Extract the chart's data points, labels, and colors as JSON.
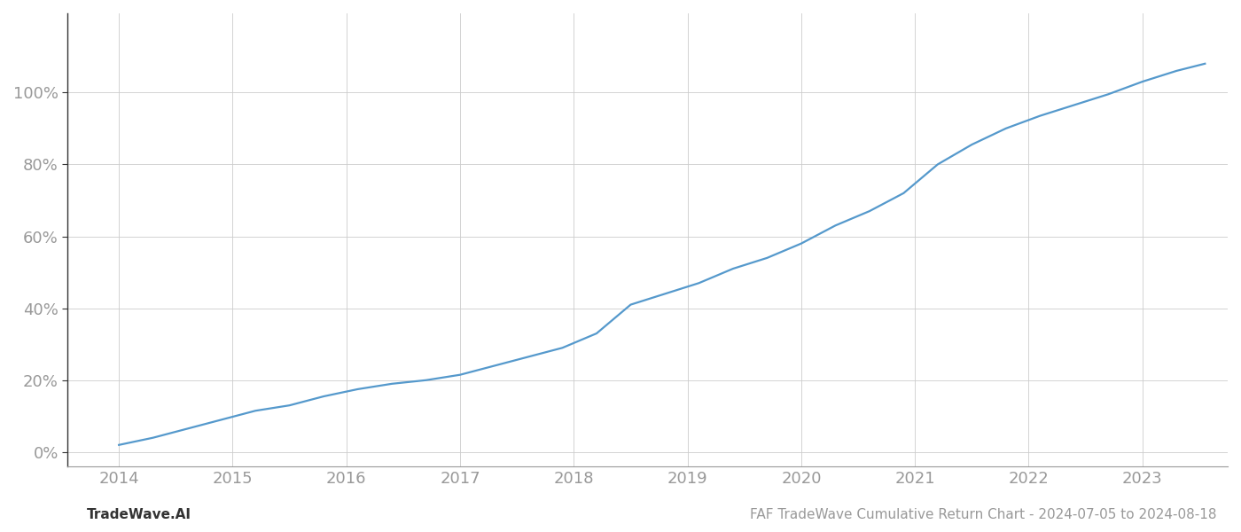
{
  "title": "FAF TradeWave Cumulative Return Chart - 2024-07-05 to 2024-08-18",
  "watermark_left": "TradeWave.AI",
  "line_color": "#5599cc",
  "background_color": "#ffffff",
  "grid_color": "#cccccc",
  "x_years": [
    2014,
    2015,
    2016,
    2017,
    2018,
    2019,
    2020,
    2021,
    2022,
    2023
  ],
  "x_data": [
    2014.0,
    2014.3,
    2014.6,
    2014.9,
    2015.2,
    2015.5,
    2015.8,
    2016.1,
    2016.4,
    2016.7,
    2017.0,
    2017.3,
    2017.6,
    2017.9,
    2018.2,
    2018.5,
    2018.8,
    2019.1,
    2019.4,
    2019.7,
    2020.0,
    2020.3,
    2020.6,
    2020.9,
    2021.2,
    2021.5,
    2021.8,
    2022.1,
    2022.4,
    2022.7,
    2023.0,
    2023.3,
    2023.55
  ],
  "y_data": [
    0.02,
    0.04,
    0.065,
    0.09,
    0.115,
    0.13,
    0.155,
    0.175,
    0.19,
    0.2,
    0.215,
    0.24,
    0.265,
    0.29,
    0.33,
    0.41,
    0.44,
    0.47,
    0.51,
    0.54,
    0.58,
    0.63,
    0.67,
    0.72,
    0.8,
    0.855,
    0.9,
    0.935,
    0.965,
    0.995,
    1.03,
    1.06,
    1.08
  ],
  "yticks": [
    0.0,
    0.2,
    0.4,
    0.6,
    0.8,
    1.0
  ],
  "ylim": [
    -0.04,
    1.22
  ],
  "xlim": [
    2013.55,
    2023.75
  ],
  "ylabel_labels": [
    "0%",
    "20%",
    "40%",
    "60%",
    "80%",
    "100%"
  ],
  "axis_label_color": "#999999",
  "left_spine_color": "#333333",
  "bottom_spine_color": "#999999",
  "line_width": 1.6,
  "title_fontsize": 11,
  "watermark_fontsize": 11,
  "tick_fontsize": 13
}
